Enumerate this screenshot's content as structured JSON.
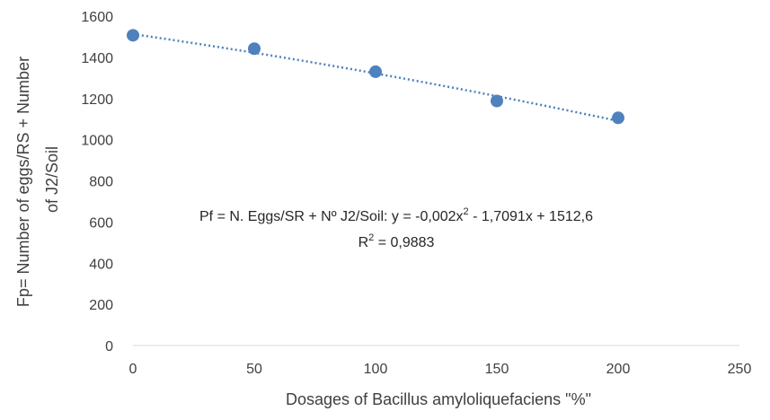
{
  "chart_data": {
    "type": "scatter",
    "x": [
      0,
      50,
      100,
      150,
      200
    ],
    "y": [
      1507,
      1442,
      1330,
      1188,
      1106
    ],
    "xlim": [
      0,
      250
    ],
    "ylim": [
      0,
      1600
    ],
    "x_ticks": [
      "0",
      "50",
      "100",
      "150",
      "200",
      "250"
    ],
    "y_ticks": [
      "0",
      "200",
      "400",
      "600",
      "800",
      "1000",
      "1200",
      "1400",
      "1600"
    ],
    "xlabel": "Dosages of  Bacillus amyloliquefaciens \"%\"",
    "ylabel_line1": "Fp= Number of eggs/RS + Number",
    "ylabel_line2": "of J2/Soil",
    "trendline": {
      "type": "polynomial",
      "coefficients": {
        "a": -0.002,
        "b": -1.7091,
        "c": 1512.6
      },
      "equation_prefix": "Pf = N. Eggs/SR + Nº J2/Soil: y = -0,002x",
      "equation_sup": "2",
      "equation_suffix": " - 1,7091x + 1512,6",
      "r2_text_prefix": "R",
      "r2_sup": "2",
      "r2_text_suffix": " = 0,9883"
    },
    "marker_color": "#4f81bd",
    "trend_color": "#4f81bd",
    "grid": false,
    "legend": "none"
  }
}
